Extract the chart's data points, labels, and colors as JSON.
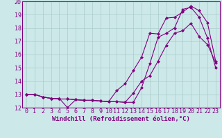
{
  "xlabel": "Windchill (Refroidissement éolien,°C)",
  "ylabel": "",
  "bg_color": "#cce8e8",
  "line_color": "#800080",
  "grid_color": "#aacccc",
  "xlim": [
    -0.5,
    23.5
  ],
  "ylim": [
    12,
    20
  ],
  "yticks": [
    12,
    13,
    14,
    15,
    16,
    17,
    18,
    19,
    20
  ],
  "xticks": [
    0,
    1,
    2,
    3,
    4,
    5,
    6,
    7,
    8,
    9,
    10,
    11,
    12,
    13,
    14,
    15,
    16,
    17,
    18,
    19,
    20,
    21,
    22,
    23
  ],
  "line1_x": [
    0,
    1,
    2,
    3,
    4,
    5,
    6,
    7,
    8,
    9,
    10,
    11,
    12,
    13,
    14,
    15,
    16,
    17,
    18,
    19,
    20,
    21,
    22,
    23
  ],
  "line1_y": [
    13.0,
    13.0,
    12.8,
    12.7,
    12.7,
    12.0,
    12.6,
    12.55,
    12.55,
    12.5,
    12.45,
    12.45,
    12.4,
    13.1,
    14.0,
    14.4,
    15.5,
    16.7,
    17.6,
    17.8,
    18.35,
    17.35,
    16.75,
    15.4
  ],
  "line2_x": [
    0,
    1,
    2,
    3,
    4,
    5,
    6,
    7,
    8,
    9,
    10,
    11,
    12,
    13,
    14,
    15,
    16,
    17,
    18,
    19,
    20,
    21,
    22,
    23
  ],
  "line2_y": [
    13.0,
    13.0,
    12.8,
    12.7,
    12.65,
    12.65,
    12.6,
    12.55,
    12.55,
    12.5,
    12.45,
    13.3,
    13.8,
    14.8,
    15.8,
    17.6,
    17.55,
    18.75,
    18.8,
    19.2,
    19.65,
    19.3,
    18.4,
    15.5
  ],
  "line3_x": [
    0,
    1,
    2,
    3,
    4,
    5,
    6,
    7,
    8,
    9,
    10,
    11,
    12,
    13,
    14,
    15,
    16,
    17,
    18,
    19,
    20,
    21,
    22,
    23
  ],
  "line3_y": [
    13.0,
    13.0,
    12.8,
    12.7,
    12.65,
    12.65,
    12.6,
    12.55,
    12.55,
    12.5,
    12.45,
    12.45,
    12.4,
    12.4,
    13.5,
    15.3,
    17.3,
    17.6,
    18.0,
    19.4,
    19.55,
    18.8,
    17.25,
    15.0
  ],
  "marker": "D",
  "markersize": 2.0,
  "linewidth": 0.8,
  "xlabel_fontsize": 6.5,
  "tick_fontsize": 6.0
}
